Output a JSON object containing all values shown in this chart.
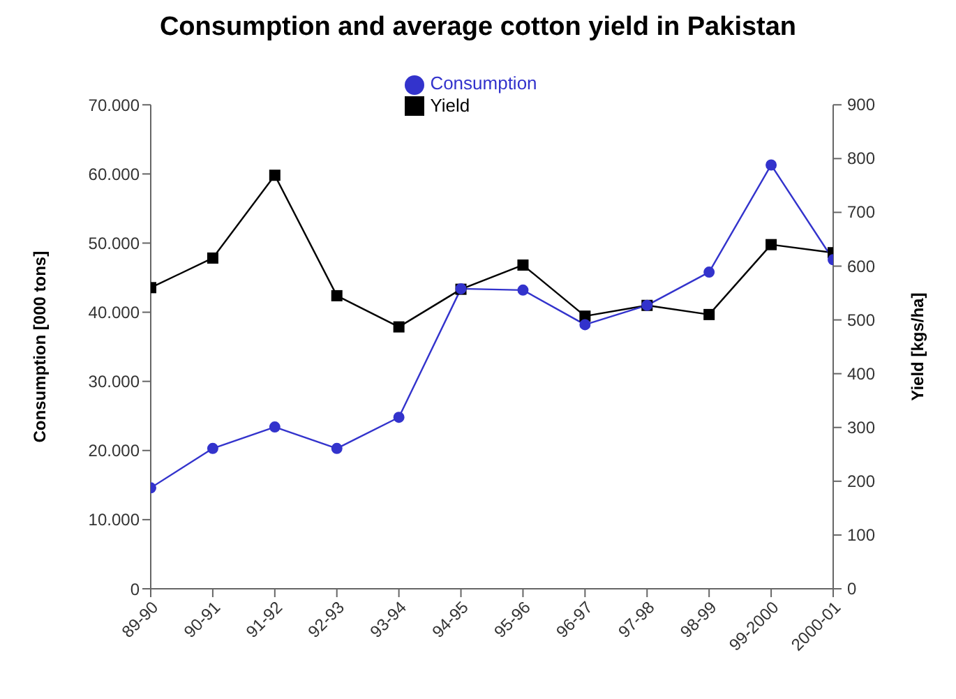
{
  "chart_data": {
    "type": "line",
    "title": "Consumption and average cotton yield in Pakistan",
    "ylabel": "Consumption [000 tons]",
    "y2label": "Yield [kgs/ha]",
    "categories": [
      "89-90",
      "90-91",
      "91-92",
      "92-93",
      "93-94",
      "94-95",
      "95-96",
      "96-97",
      "97-98",
      "98-99",
      "99-2000",
      "2000-01"
    ],
    "series": [
      {
        "name": "Consumption",
        "color": "#3333cc",
        "marker": "circle",
        "values": [
          14600,
          20300,
          23400,
          20300,
          24800,
          43400,
          43200,
          38200,
          41000,
          45800,
          61300,
          47600
        ]
      },
      {
        "name": "Yield",
        "color": "#000000",
        "marker": "square",
        "axis": "y2",
        "values": [
          560,
          615,
          769,
          545,
          487,
          557,
          602,
          507,
          527,
          510,
          640,
          625
        ]
      }
    ],
    "ylim": [
      0,
      70000
    ],
    "yticks": [
      {
        "value": 0,
        "label": "0"
      },
      {
        "value": 10000,
        "label": "10.000"
      },
      {
        "value": 20000,
        "label": "20.000"
      },
      {
        "value": 30000,
        "label": "30.000"
      },
      {
        "value": 40000,
        "label": "40.000"
      },
      {
        "value": 50000,
        "label": "50.000"
      },
      {
        "value": 60000,
        "label": "60.000"
      },
      {
        "value": 70000,
        "label": "70.000"
      }
    ],
    "y2lim": [
      0,
      900
    ],
    "y2ticks": [
      0,
      100,
      200,
      300,
      400,
      500,
      600,
      700,
      800,
      900
    ],
    "grid": false,
    "legend": "top"
  }
}
